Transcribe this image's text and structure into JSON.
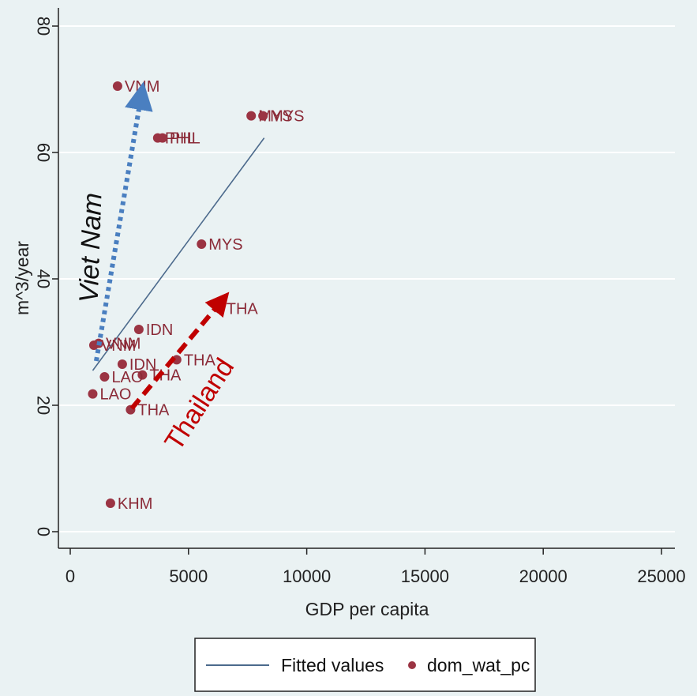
{
  "chart_data": {
    "type": "scatter",
    "xlabel": "GDP per capita",
    "ylabel": "m^3/year",
    "xlim": [
      0,
      25000
    ],
    "ylim": [
      0,
      80
    ],
    "x_ticks": [
      0,
      5000,
      10000,
      15000,
      20000,
      25000
    ],
    "y_ticks": [
      0,
      20,
      40,
      60,
      80
    ],
    "grid": true,
    "series": [
      {
        "name": "dom_wat_pc",
        "color": "#9b3443",
        "points": [
          {
            "label": "VNM",
            "x": 2000,
            "y": 70.5
          },
          {
            "label": "MYS",
            "x": 7650,
            "y": 65.8
          },
          {
            "label": "MYS",
            "x": 8150,
            "y": 65.8
          },
          {
            "label": "PHL",
            "x": 3700,
            "y": 62.3
          },
          {
            "label": "PHL",
            "x": 3900,
            "y": 62.3
          },
          {
            "label": "MYS",
            "x": 5550,
            "y": 45.5
          },
          {
            "label": "THA",
            "x": 6300,
            "y": 35.3
          },
          {
            "label": "IDN",
            "x": 2900,
            "y": 32.0
          },
          {
            "label": "VNM",
            "x": 1000,
            "y": 29.5
          },
          {
            "label": "VNM",
            "x": 1200,
            "y": 29.8
          },
          {
            "label": "THA",
            "x": 4500,
            "y": 27.2
          },
          {
            "label": "IDN",
            "x": 2200,
            "y": 26.5
          },
          {
            "label": "THA",
            "x": 3050,
            "y": 24.8
          },
          {
            "label": "LAO",
            "x": 1450,
            "y": 24.5
          },
          {
            "label": "LAO",
            "x": 950,
            "y": 21.8
          },
          {
            "label": "THA",
            "x": 2550,
            "y": 19.3
          },
          {
            "label": "KHM",
            "x": 1700,
            "y": 4.5
          }
        ]
      }
    ],
    "fitted_line": {
      "name": "Fitted values",
      "color": "#4c6a8c",
      "x": [
        950,
        8200
      ],
      "y": [
        25.5,
        62.3
      ]
    },
    "legend": {
      "position": "bottom-center",
      "entries": [
        {
          "label": "Fitted values",
          "marker": "line",
          "color": "#4c6a8c"
        },
        {
          "label": "dom_wat_pc",
          "marker": "dot",
          "color": "#9b3443"
        }
      ]
    },
    "annotations": [
      {
        "text": "Viet Nam",
        "color": "#111111",
        "arrow_color": "#4a7fc0",
        "arrow_style": "dotted",
        "from": [
          1100,
          27
        ],
        "to": [
          3000,
          69
        ]
      },
      {
        "text": "Thailand",
        "color": "#c00000",
        "arrow_color": "#c00000",
        "arrow_style": "dashed",
        "from": [
          2600,
          19.5
        ],
        "to": [
          6400,
          36.5
        ]
      }
    ]
  }
}
